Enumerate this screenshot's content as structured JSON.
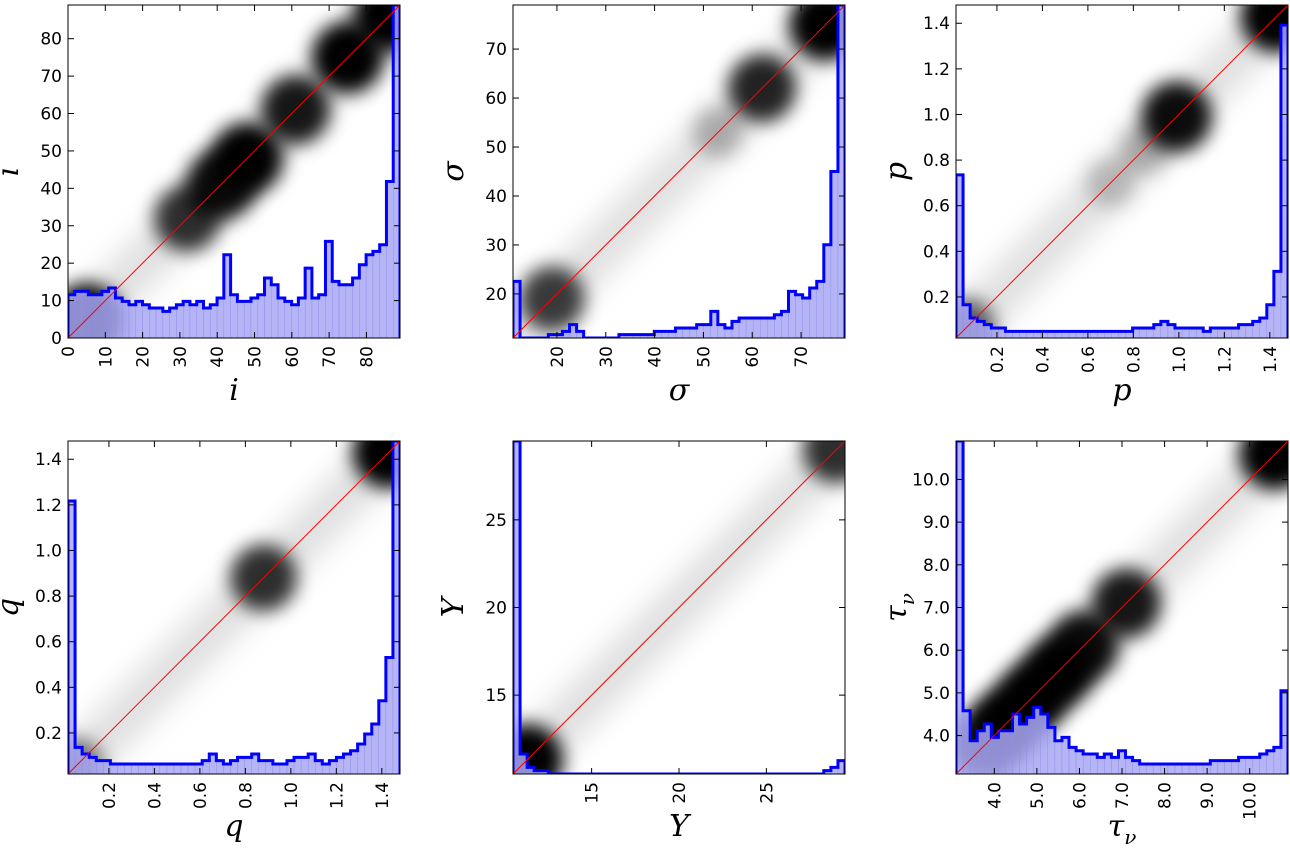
{
  "chart_data": [
    {
      "type": "heatmap",
      "xlabel": "i",
      "ylabel": "i",
      "xlim": [
        0,
        89
      ],
      "ylim": [
        0,
        89
      ],
      "xticks": [
        "0",
        "10",
        "20",
        "30",
        "40",
        "50",
        "60",
        "70",
        "80"
      ],
      "yticks": [
        "0",
        "10",
        "20",
        "30",
        "40",
        "50",
        "60",
        "70",
        "80"
      ],
      "tick_values": [
        0,
        10,
        20,
        30,
        40,
        50,
        60,
        70,
        80
      ],
      "density_blobs": [
        {
          "x": 5,
          "y": 5,
          "strength": 1.0
        },
        {
          "x": 32,
          "y": 32,
          "strength": 0.8
        },
        {
          "x": 41,
          "y": 41,
          "strength": 0.95
        },
        {
          "x": 48,
          "y": 48,
          "strength": 1.0
        },
        {
          "x": 61,
          "y": 61,
          "strength": 0.9
        },
        {
          "x": 75,
          "y": 75,
          "strength": 1.0
        },
        {
          "x": 86,
          "y": 86,
          "strength": 1.0
        }
      ],
      "histogram_fraction": [
        0.13,
        0.14,
        0.14,
        0.13,
        0.13,
        0.14,
        0.15,
        0.12,
        0.11,
        0.1,
        0.11,
        0.1,
        0.09,
        0.09,
        0.08,
        0.09,
        0.1,
        0.11,
        0.1,
        0.11,
        0.09,
        0.1,
        0.12,
        0.25,
        0.13,
        0.11,
        0.11,
        0.12,
        0.13,
        0.18,
        0.16,
        0.12,
        0.11,
        0.1,
        0.12,
        0.21,
        0.12,
        0.13,
        0.29,
        0.17,
        0.16,
        0.16,
        0.18,
        0.22,
        0.25,
        0.26,
        0.28,
        0.47,
        1.0
      ]
    },
    {
      "type": "heatmap",
      "xlabel": "σ",
      "ylabel": "σ",
      "xlim": [
        11,
        79
      ],
      "ylim": [
        11,
        79
      ],
      "xticks": [
        "20",
        "30",
        "40",
        "50",
        "60",
        "70"
      ],
      "yticks": [
        "20",
        "30",
        "40",
        "50",
        "60",
        "70"
      ],
      "tick_values": [
        20,
        30,
        40,
        50,
        60,
        70
      ],
      "density_blobs": [
        {
          "x": 19,
          "y": 19,
          "strength": 0.75
        },
        {
          "x": 53,
          "y": 53,
          "strength": 0.25
        },
        {
          "x": 62,
          "y": 62,
          "strength": 0.85
        },
        {
          "x": 75,
          "y": 75,
          "strength": 1.0
        }
      ],
      "histogram_fraction": [
        0.17,
        0.0,
        0.0,
        0.0,
        0.0,
        0.01,
        0.01,
        0.02,
        0.04,
        0.02,
        0.0,
        0.0,
        0.0,
        0.0,
        0.0,
        0.01,
        0.01,
        0.01,
        0.01,
        0.01,
        0.02,
        0.02,
        0.02,
        0.03,
        0.03,
        0.03,
        0.04,
        0.04,
        0.08,
        0.04,
        0.03,
        0.05,
        0.06,
        0.06,
        0.06,
        0.06,
        0.06,
        0.07,
        0.08,
        0.14,
        0.13,
        0.12,
        0.15,
        0.17,
        0.28,
        0.5,
        1.0
      ]
    },
    {
      "type": "heatmap",
      "xlabel": "p",
      "ylabel": "p",
      "xlim": [
        0.02,
        1.48
      ],
      "ylim": [
        0.02,
        1.48
      ],
      "xticks": [
        "0.2",
        "0.4",
        "0.6",
        "0.8",
        "1.0",
        "1.2",
        "1.4"
      ],
      "yticks": [
        "0.2",
        "0.4",
        "0.6",
        "0.8",
        "1.0",
        "1.2",
        "1.4"
      ],
      "tick_values": [
        0.2,
        0.4,
        0.6,
        0.8,
        1.0,
        1.2,
        1.4
      ],
      "density_blobs": [
        {
          "x": 0.06,
          "y": 0.06,
          "strength": 0.6
        },
        {
          "x": 0.7,
          "y": 0.7,
          "strength": 0.2
        },
        {
          "x": 0.85,
          "y": 0.85,
          "strength": 0.25
        },
        {
          "x": 0.99,
          "y": 0.99,
          "strength": 0.95
        },
        {
          "x": 1.43,
          "y": 1.43,
          "strength": 1.0
        }
      ],
      "histogram_fraction": [
        0.49,
        0.1,
        0.06,
        0.05,
        0.04,
        0.03,
        0.03,
        0.02,
        0.02,
        0.02,
        0.02,
        0.02,
        0.02,
        0.02,
        0.02,
        0.02,
        0.02,
        0.02,
        0.02,
        0.02,
        0.02,
        0.02,
        0.02,
        0.02,
        0.02,
        0.03,
        0.03,
        0.03,
        0.04,
        0.05,
        0.04,
        0.03,
        0.03,
        0.03,
        0.03,
        0.02,
        0.03,
        0.03,
        0.03,
        0.03,
        0.04,
        0.04,
        0.05,
        0.06,
        0.1,
        0.2,
        0.94
      ]
    },
    {
      "type": "heatmap",
      "xlabel": "q",
      "ylabel": "q",
      "xlim": [
        0.02,
        1.48
      ],
      "ylim": [
        0.02,
        1.48
      ],
      "xticks": [
        "0.2",
        "0.4",
        "0.6",
        "0.8",
        "1.0",
        "1.2",
        "1.4"
      ],
      "yticks": [
        "0.2",
        "0.4",
        "0.6",
        "0.8",
        "1.0",
        "1.2",
        "1.4"
      ],
      "tick_values": [
        0.2,
        0.4,
        0.6,
        0.8,
        1.0,
        1.2,
        1.4
      ],
      "density_blobs": [
        {
          "x": 0.05,
          "y": 0.05,
          "strength": 0.5
        },
        {
          "x": 0.88,
          "y": 0.88,
          "strength": 0.8
        },
        {
          "x": 1.43,
          "y": 1.43,
          "strength": 1.0
        }
      ],
      "histogram_fraction": [
        0.82,
        0.08,
        0.06,
        0.05,
        0.04,
        0.04,
        0.03,
        0.03,
        0.03,
        0.03,
        0.03,
        0.03,
        0.03,
        0.03,
        0.03,
        0.03,
        0.03,
        0.03,
        0.03,
        0.04,
        0.06,
        0.04,
        0.03,
        0.04,
        0.05,
        0.05,
        0.06,
        0.04,
        0.04,
        0.03,
        0.03,
        0.04,
        0.05,
        0.05,
        0.06,
        0.04,
        0.03,
        0.04,
        0.05,
        0.06,
        0.07,
        0.09,
        0.12,
        0.15,
        0.22,
        0.35,
        1.0
      ]
    },
    {
      "type": "heatmap",
      "xlabel": "Y",
      "ylabel": "Y",
      "xlim": [
        10.5,
        29.5
      ],
      "ylim": [
        10.5,
        29.5
      ],
      "xticks": [
        "15",
        "20",
        "25"
      ],
      "yticks": [
        "15",
        "20",
        "25"
      ],
      "tick_values": [
        15,
        20,
        25
      ],
      "density_blobs": [
        {
          "x": 11.3,
          "y": 11.3,
          "strength": 1.0
        },
        {
          "x": 29.0,
          "y": 29.0,
          "strength": 0.8
        }
      ],
      "histogram_fraction": [
        1.0,
        0.06,
        0.02,
        0.01,
        0.01,
        0.0,
        0.0,
        0.0,
        0.0,
        0.0,
        0.0,
        0.0,
        0.0,
        0.0,
        0.0,
        0.0,
        0.0,
        0.0,
        0.0,
        0.0,
        0.0,
        0.0,
        0.0,
        0.0,
        0.0,
        0.0,
        0.0,
        0.0,
        0.0,
        0.0,
        0.0,
        0.0,
        0.0,
        0.0,
        0.0,
        0.0,
        0.0,
        0.0,
        0.0,
        0.0,
        0.0,
        0.0,
        0.0,
        0.0,
        0.01,
        0.02,
        0.04
      ]
    },
    {
      "type": "heatmap",
      "xlabel": "τ_ν",
      "ylabel": "τ_ν",
      "xlim": [
        3.1,
        10.9
      ],
      "ylim": [
        3.1,
        10.9
      ],
      "xticks": [
        "4.0",
        "5.0",
        "6.0",
        "7.0",
        "8.0",
        "9.0",
        "10.0"
      ],
      "yticks": [
        "4.0",
        "5.0",
        "6.0",
        "7.0",
        "8.0",
        "9.0",
        "10.0"
      ],
      "tick_values": [
        4,
        5,
        6,
        7,
        8,
        9,
        10
      ],
      "density_blobs": [
        {
          "x": 3.8,
          "y": 3.8,
          "strength": 0.9
        },
        {
          "x": 4.3,
          "y": 4.3,
          "strength": 1.0
        },
        {
          "x": 4.9,
          "y": 4.9,
          "strength": 1.0
        },
        {
          "x": 5.5,
          "y": 5.5,
          "strength": 1.0
        },
        {
          "x": 6.1,
          "y": 6.1,
          "strength": 0.95
        },
        {
          "x": 7.1,
          "y": 7.1,
          "strength": 0.9
        },
        {
          "x": 10.6,
          "y": 10.6,
          "strength": 1.0
        }
      ],
      "histogram_fraction": [
        1.0,
        0.19,
        0.1,
        0.13,
        0.15,
        0.11,
        0.13,
        0.13,
        0.18,
        0.15,
        0.17,
        0.2,
        0.18,
        0.14,
        0.1,
        0.11,
        0.08,
        0.07,
        0.06,
        0.06,
        0.05,
        0.06,
        0.05,
        0.07,
        0.05,
        0.04,
        0.03,
        0.03,
        0.03,
        0.03,
        0.03,
        0.03,
        0.03,
        0.03,
        0.03,
        0.03,
        0.04,
        0.04,
        0.04,
        0.04,
        0.05,
        0.05,
        0.05,
        0.06,
        0.07,
        0.08,
        0.25
      ]
    }
  ],
  "colors": {
    "diagonal": "#ff0000",
    "histogram_line": "#0000ff",
    "histogram_fill": "#a7a7f5",
    "density": "#000000"
  }
}
